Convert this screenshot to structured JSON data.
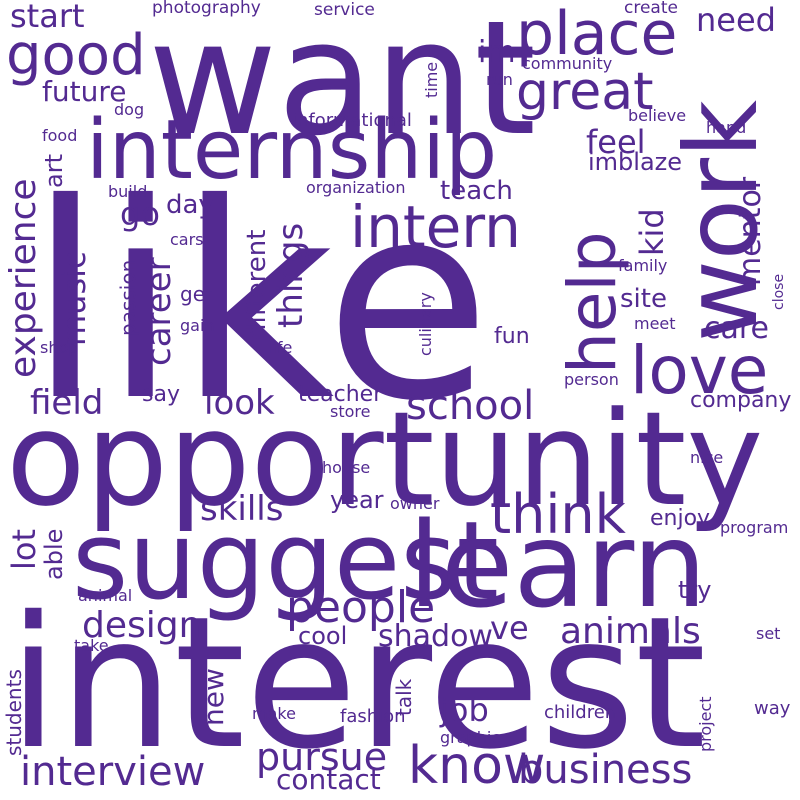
{
  "color": "#532a91",
  "words": [
    {
      "text": "like"
    },
    {
      "text": "interest"
    },
    {
      "text": "opportunity"
    },
    {
      "text": "want"
    },
    {
      "text": "suggest"
    },
    {
      "text": "learn"
    },
    {
      "text": "internship"
    },
    {
      "text": "work"
    },
    {
      "text": "help"
    },
    {
      "text": "love"
    },
    {
      "text": "place"
    },
    {
      "text": "intern"
    },
    {
      "text": "think"
    },
    {
      "text": "know"
    },
    {
      "text": "good"
    },
    {
      "text": "great"
    },
    {
      "text": "people"
    },
    {
      "text": "school"
    },
    {
      "text": "business"
    },
    {
      "text": "interview"
    },
    {
      "text": "pursue"
    },
    {
      "text": "animals"
    },
    {
      "text": "design"
    },
    {
      "text": "experience"
    },
    {
      "text": "field"
    },
    {
      "text": "look"
    },
    {
      "text": "skills"
    },
    {
      "text": "career"
    },
    {
      "text": "things"
    },
    {
      "text": "music"
    },
    {
      "text": "mentor"
    },
    {
      "text": "job"
    },
    {
      "text": "shadow"
    },
    {
      "text": "need"
    },
    {
      "text": "feel"
    },
    {
      "text": "start"
    },
    {
      "text": "kid"
    },
    {
      "text": "future"
    },
    {
      "text": "contact"
    },
    {
      "text": "ve"
    },
    {
      "text": "care"
    },
    {
      "text": "different"
    },
    {
      "text": "teach"
    },
    {
      "text": "go"
    },
    {
      "text": "im"
    },
    {
      "text": "lot"
    },
    {
      "text": "new"
    },
    {
      "text": "day"
    },
    {
      "text": "site"
    },
    {
      "text": "imblaze"
    },
    {
      "text": "year"
    },
    {
      "text": "teacher"
    },
    {
      "text": "company"
    },
    {
      "text": "enjoy"
    },
    {
      "text": "able"
    },
    {
      "text": "art"
    },
    {
      "text": "fun"
    },
    {
      "text": "try"
    },
    {
      "text": "cool"
    },
    {
      "text": "say"
    },
    {
      "text": "get"
    },
    {
      "text": "students"
    },
    {
      "text": "passion"
    },
    {
      "text": "talk"
    },
    {
      "text": "children"
    },
    {
      "text": "fashion"
    },
    {
      "text": "way"
    },
    {
      "text": "project"
    },
    {
      "text": "informational"
    },
    {
      "text": "culinary"
    },
    {
      "text": "photography"
    },
    {
      "text": "service"
    },
    {
      "text": "create"
    },
    {
      "text": "community"
    },
    {
      "text": "time"
    },
    {
      "text": "run"
    },
    {
      "text": "believe"
    },
    {
      "text": "hand"
    },
    {
      "text": "food"
    },
    {
      "text": "dog"
    },
    {
      "text": "build"
    },
    {
      "text": "organization"
    },
    {
      "text": "cars"
    },
    {
      "text": "family"
    },
    {
      "text": "close"
    },
    {
      "text": "meet"
    },
    {
      "text": "gain"
    },
    {
      "text": "shop"
    },
    {
      "text": "life"
    },
    {
      "text": "person"
    },
    {
      "text": "store"
    },
    {
      "text": "house"
    },
    {
      "text": "nice"
    },
    {
      "text": "owner"
    },
    {
      "text": "program"
    },
    {
      "text": "animal"
    },
    {
      "text": "take"
    },
    {
      "text": "set"
    },
    {
      "text": "make"
    },
    {
      "text": "graphic"
    }
  ]
}
